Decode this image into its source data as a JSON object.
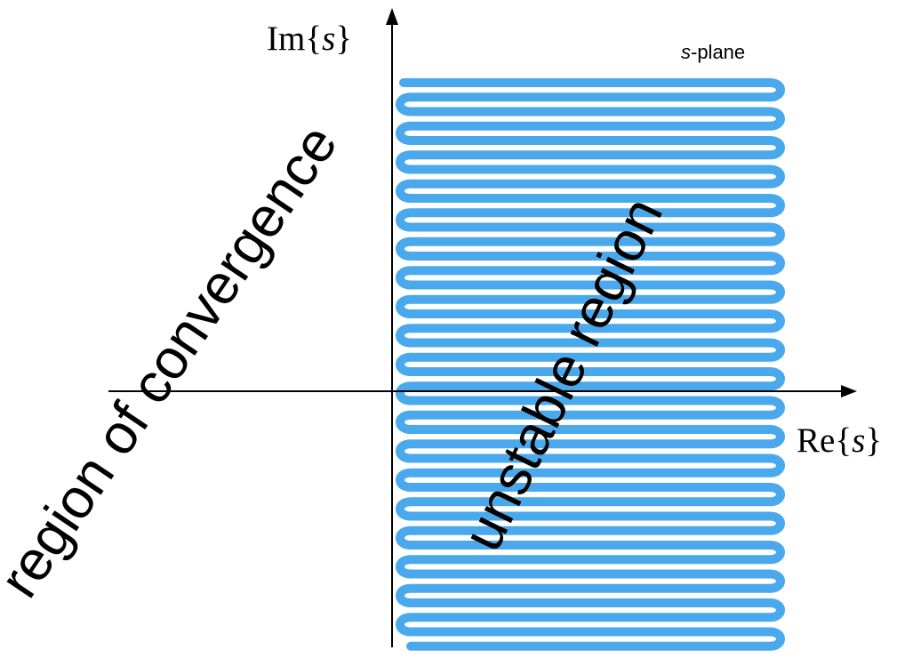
{
  "diagram": {
    "plane_label": {
      "variable": "s",
      "suffix": "-plane"
    },
    "axes": {
      "imag": {
        "prefix": "Im",
        "open_brace": "{",
        "variable": "s",
        "close_brace": "}"
      },
      "real": {
        "prefix": "Re",
        "open_brace": "{",
        "variable": "s",
        "close_brace": "}"
      }
    },
    "regions": {
      "left": "region of convergence",
      "right": "unstable region"
    },
    "colors": {
      "hatch": "#4aa8ec",
      "axes": "#000000",
      "text": "#000000"
    }
  }
}
